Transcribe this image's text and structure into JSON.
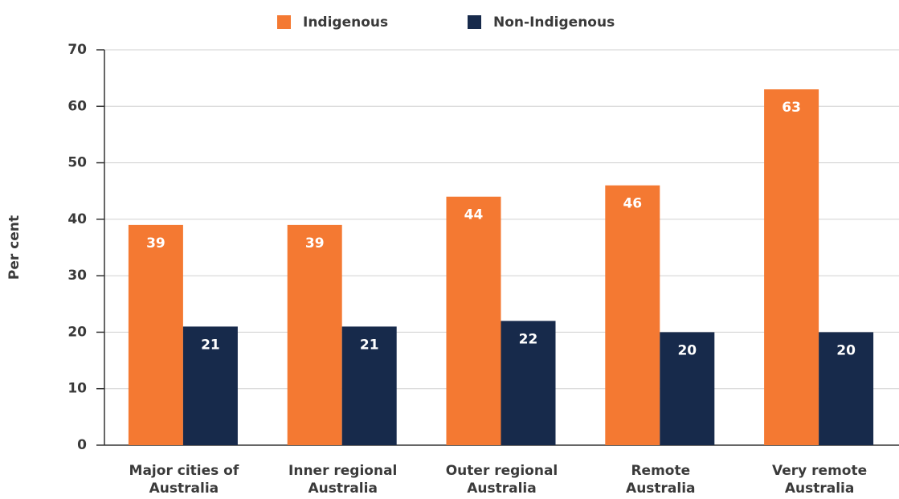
{
  "chart_data": {
    "type": "bar",
    "y_label": "Per cent",
    "categories": [
      "Major cities of Australia",
      "Inner regional Australia",
      "Outer regional Australia",
      "Remote Australia",
      "Very remote Australia"
    ],
    "series": [
      {
        "name": "Indigenous",
        "color": "#f47932",
        "values": [
          39,
          39,
          44,
          46,
          63
        ]
      },
      {
        "name": "Non-Indigenous",
        "color": "#172a4b",
        "values": [
          21,
          21,
          22,
          20,
          20
        ]
      }
    ],
    "ylim": [
      0,
      70
    ],
    "yticks": [
      0,
      10,
      20,
      30,
      40,
      50,
      60,
      70
    ],
    "grid": true,
    "legend": "top"
  }
}
